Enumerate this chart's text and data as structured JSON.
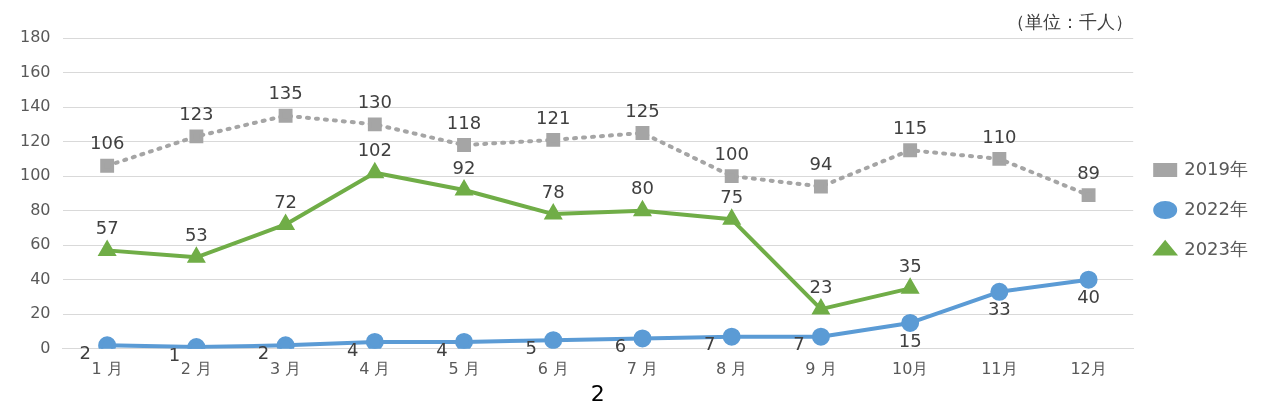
{
  "chart_data": {
    "type": "line",
    "categories": [
      "1 月",
      "2 月",
      "3 月",
      "4 月",
      "5 月",
      "6 月",
      "7 月",
      "8 月",
      "9 月",
      "10月",
      "11月",
      "12月"
    ],
    "series": [
      {
        "name": "2019年",
        "color": "#a5a5a5",
        "marker": "square",
        "line_style": "dotted",
        "values": [
          106,
          123,
          135,
          130,
          118,
          121,
          125,
          100,
          94,
          115,
          110,
          89
        ]
      },
      {
        "name": "2022年",
        "color": "#5b9bd5",
        "marker": "circle",
        "line_style": "solid",
        "values": [
          2,
          1,
          2,
          4,
          4,
          5,
          6,
          7,
          7,
          15,
          33,
          40
        ]
      },
      {
        "name": "2023年",
        "color": "#70ad47",
        "marker": "triangle",
        "line_style": "solid",
        "values": [
          57,
          53,
          72,
          102,
          92,
          78,
          80,
          75,
          23,
          35,
          null,
          null
        ]
      }
    ],
    "ylim": [
      0,
      180
    ],
    "yticks": [
      0,
      20,
      40,
      60,
      80,
      100,
      120,
      140,
      160,
      180
    ],
    "grid": "y",
    "legend": "right",
    "data_labels": true,
    "annotations": [
      "（単位：千人）",
      "2"
    ]
  }
}
